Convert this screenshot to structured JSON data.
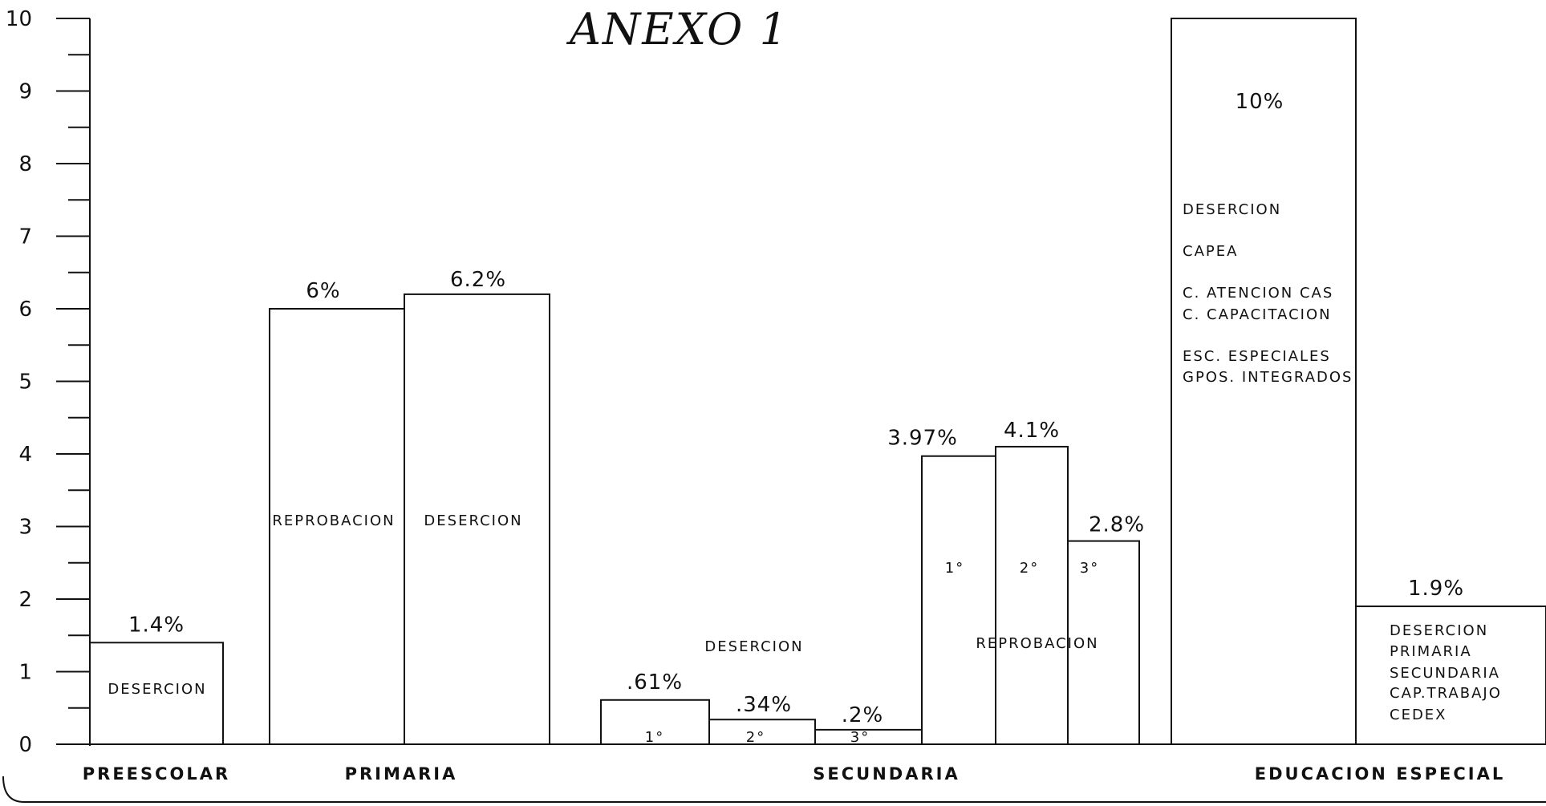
{
  "chart_data": {
    "type": "bar",
    "title": "ANEXO 1",
    "ylim": [
      0,
      10
    ],
    "y_ticks": [
      "0",
      "1",
      "2",
      "3",
      "4",
      "5",
      "6",
      "7",
      "8",
      "9",
      "10"
    ],
    "grid": false,
    "categories": [
      "PREESCOLAR",
      "PRIMARIA",
      "SECUNDARIA",
      "EDUCACION ESPECIAL"
    ],
    "bars": [
      {
        "category": "PREESCOLAR",
        "value": 1.4,
        "value_label": "1.4%",
        "inner_lines": [
          "DESERCION"
        ]
      },
      {
        "category": "PRIMARIA",
        "value": 6.0,
        "value_label": "6%",
        "inner_lines": [
          "REPROBACION"
        ]
      },
      {
        "category": "PRIMARIA",
        "value": 6.2,
        "value_label": "6.2%",
        "inner_lines": [
          "DESERCION"
        ]
      },
      {
        "category": "SECUNDARIA",
        "value": 0.61,
        "value_label": ".61%",
        "inner_lines": [
          "1°"
        ]
      },
      {
        "category": "SECUNDARIA",
        "value": 0.34,
        "value_label": ".34%",
        "inner_lines": [
          "2°"
        ]
      },
      {
        "category": "SECUNDARIA",
        "value": 0.2,
        "value_label": ".2%",
        "inner_lines": [
          "3°"
        ]
      },
      {
        "category": "SECUNDARIA",
        "value": 3.97,
        "value_label": "3.97%",
        "inner_lines": [
          "1°"
        ]
      },
      {
        "category": "SECUNDARIA",
        "value": 4.1,
        "value_label": "4.1%",
        "inner_lines": [
          "2°"
        ]
      },
      {
        "category": "SECUNDARIA",
        "value": 2.8,
        "value_label": "2.8%",
        "inner_lines": [
          "3°"
        ]
      },
      {
        "category": "EDUCACION ESPECIAL",
        "value": 10.0,
        "value_label": "10%",
        "inner_lines": [
          "DESERCION",
          "CAPEA",
          "C. ATENCION CAS",
          "C. CAPACITACION",
          "ESC. ESPECIALES",
          "GPOS. INTEGRADOS"
        ]
      },
      {
        "category": "EDUCACION ESPECIAL",
        "value": 1.9,
        "value_label": "1.9%",
        "inner_lines": [
          "DESERCION",
          "PRIMARIA",
          "SECUNDARIA",
          "CAP.TRABAJO",
          "CEDEX"
        ]
      }
    ],
    "group_labels": [
      "DESERCION",
      "REPROBACION"
    ]
  }
}
